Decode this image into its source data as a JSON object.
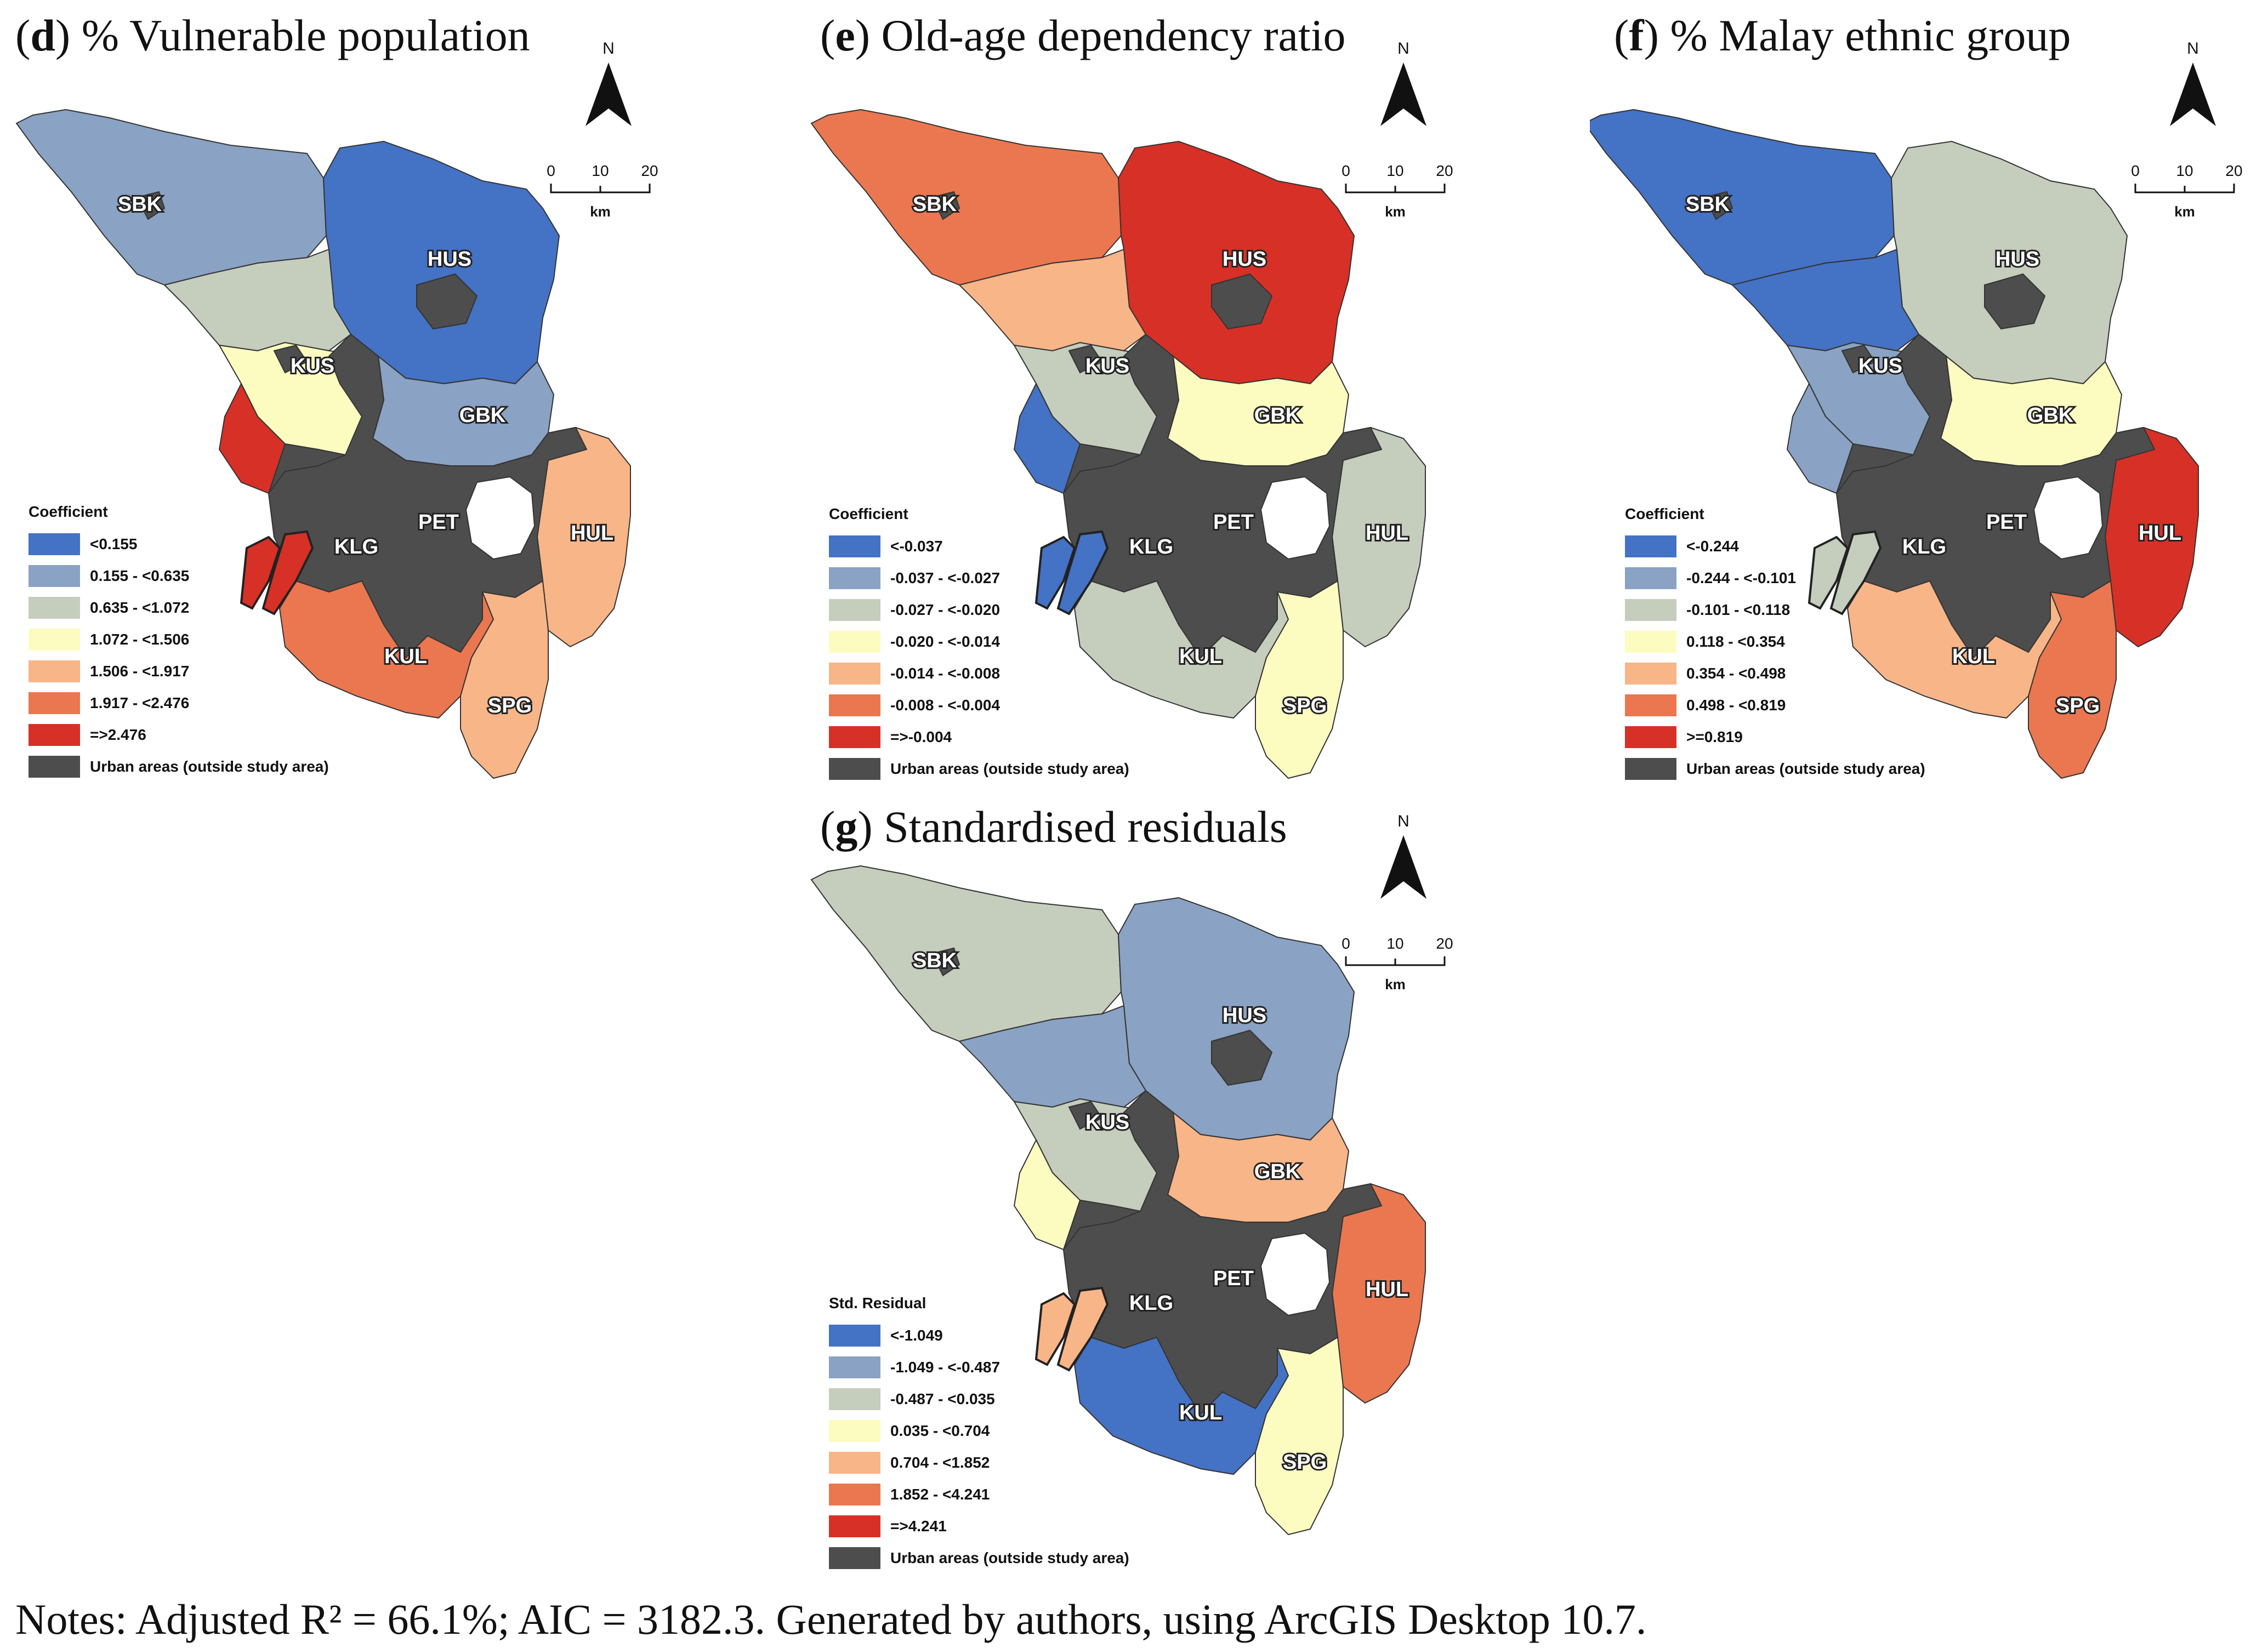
{
  "panels": [
    {
      "id": "d",
      "letter": "d",
      "title": "% Vulnerable population",
      "legend_title": "Coefficient",
      "legend": [
        {
          "label": "<0.155",
          "color": "#4472c4"
        },
        {
          "label": "0.155 - <0.635",
          "color": "#8aa2c3"
        },
        {
          "label": "0.635 - <1.072",
          "color": "#c5cdbd"
        },
        {
          "label": "1.072 - <1.506",
          "color": "#fdfcc0"
        },
        {
          "label": "1.506 - <1.917",
          "color": "#f8b588"
        },
        {
          "label": "1.917 - <2.476",
          "color": "#ea7750"
        },
        {
          "label": "=>2.476",
          "color": "#d73027"
        },
        {
          "label": "Urban areas (outside study area)",
          "color": "#4d4d4d"
        }
      ],
      "region_colors": {
        "SBK": "#8aa2c3",
        "HUS": "#4472c4",
        "KUS": "#fdfcc0",
        "GBK": "#8aa2c3",
        "PET": "#4d4d4d",
        "HUL": "#f8b588",
        "KLG": "#4d4d4d",
        "KUL": "#ea7750",
        "SPG": "#f8b588",
        "islands": "#d73027",
        "mid": "#c5cdbd",
        "coast": "#d73027"
      }
    },
    {
      "id": "e",
      "letter": "e",
      "title": "Old-age dependency ratio",
      "legend_title": "Coefficient",
      "legend": [
        {
          "label": "<-0.037",
          "color": "#4472c4"
        },
        {
          "label": "-0.037 - <-0.027",
          "color": "#8aa2c3"
        },
        {
          "label": "-0.027 - <-0.020",
          "color": "#c5cdbd"
        },
        {
          "label": "-0.020 - <-0.014",
          "color": "#fdfcc0"
        },
        {
          "label": "-0.014 - <-0.008",
          "color": "#f8b588"
        },
        {
          "label": "-0.008 - <-0.004",
          "color": "#ea7750"
        },
        {
          "label": "=>-0.004",
          "color": "#d73027"
        },
        {
          "label": "Urban areas (outside study area)",
          "color": "#4d4d4d"
        }
      ],
      "region_colors": {
        "SBK": "#ea7750",
        "HUS": "#d73027",
        "KUS": "#c5cdbd",
        "GBK": "#fdfcc0",
        "PET": "#4d4d4d",
        "HUL": "#c5cdbd",
        "KLG": "#4d4d4d",
        "KUL": "#c5cdbd",
        "SPG": "#fdfcc0",
        "islands": "#4472c4",
        "mid": "#f8b588",
        "coast": "#4472c4"
      }
    },
    {
      "id": "f",
      "letter": "f",
      "title": "% Malay ethnic group",
      "legend_title": "Coefficient",
      "legend": [
        {
          "label": "<-0.244",
          "color": "#4472c4"
        },
        {
          "label": "-0.244 - <-0.101",
          "color": "#8aa2c3"
        },
        {
          "label": "-0.101 - <0.118",
          "color": "#c5cdbd"
        },
        {
          "label": "0.118 - <0.354",
          "color": "#fdfcc0"
        },
        {
          "label": "0.354 - <0.498",
          "color": "#f8b588"
        },
        {
          "label": "0.498 - <0.819",
          "color": "#ea7750"
        },
        {
          "label": ">=0.819",
          "color": "#d73027"
        },
        {
          "label": "Urban areas (outside study area)",
          "color": "#4d4d4d"
        }
      ],
      "region_colors": {
        "SBK": "#4472c4",
        "HUS": "#c5cdbd",
        "KUS": "#8aa2c3",
        "GBK": "#fdfcc0",
        "PET": "#4d4d4d",
        "HUL": "#d73027",
        "KLG": "#4d4d4d",
        "KUL": "#f8b588",
        "SPG": "#ea7750",
        "islands": "#c5cdbd",
        "mid": "#4472c4",
        "coast": "#8aa2c3"
      }
    },
    {
      "id": "g",
      "letter": "g",
      "title": "Standardised residuals",
      "legend_title": "Std. Residual",
      "legend": [
        {
          "label": "<-1.049",
          "color": "#4472c4"
        },
        {
          "label": "-1.049 - <-0.487",
          "color": "#8aa2c3"
        },
        {
          "label": "-0.487 - <0.035",
          "color": "#c5cdbd"
        },
        {
          "label": "0.035 - <0.704",
          "color": "#fdfcc0"
        },
        {
          "label": "0.704 - <1.852",
          "color": "#f8b588"
        },
        {
          "label": "1.852 - <4.241",
          "color": "#ea7750"
        },
        {
          "label": "=>4.241",
          "color": "#d73027"
        },
        {
          "label": "Urban areas (outside study area)",
          "color": "#4d4d4d"
        }
      ],
      "region_colors": {
        "SBK": "#c5cdbd",
        "HUS": "#8aa2c3",
        "KUS": "#c5cdbd",
        "GBK": "#f8b588",
        "PET": "#4d4d4d",
        "HUL": "#ea7750",
        "KLG": "#4d4d4d",
        "KUL": "#4472c4",
        "SPG": "#fdfcc0",
        "islands": "#f8b588",
        "mid": "#8aa2c3",
        "coast": "#fdfcc0"
      }
    }
  ],
  "district_labels": [
    "SBK",
    "HUS",
    "KUS",
    "GBK",
    "PET",
    "HUL",
    "KLG",
    "KUL",
    "SPG"
  ],
  "north_label": "N",
  "scale": {
    "ticks": [
      "0",
      "10",
      "20"
    ],
    "unit": "km"
  },
  "notes": "Notes: Adjusted R² = 66.1%; AIC = 3182.3. Generated by authors, using ArcGIS Desktop 10.7."
}
